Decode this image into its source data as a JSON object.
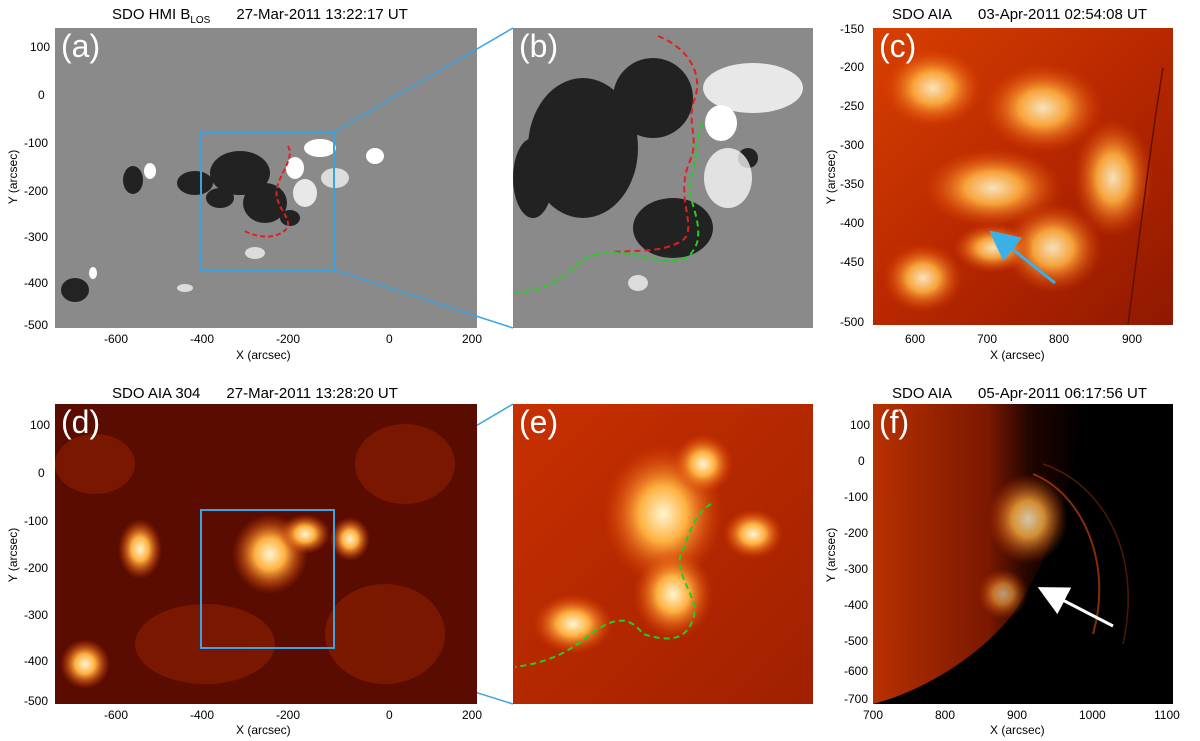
{
  "panels": {
    "a": {
      "label": "(a)",
      "title_left": "SDO HMI B",
      "title_sub": "LOS",
      "title_time": "27-Mar-2011 13:22:17 UT",
      "x_ticks": [
        "-600",
        "-400",
        "-200",
        "0",
        "200"
      ],
      "y_ticks": [
        "100",
        "0",
        "-100",
        "-200",
        "-300",
        "-400",
        "-500"
      ],
      "xlabel": "X (arcsec)",
      "ylabel": "Y (arcsec)"
    },
    "b": {
      "label": "(b)"
    },
    "c": {
      "label": "(c)",
      "title_left": "SDO AIA",
      "title_time": "03-Apr-2011 02:54:08 UT",
      "x_ticks": [
        "600",
        "700",
        "800",
        "900"
      ],
      "y_ticks": [
        "-150",
        "-200",
        "-250",
        "-300",
        "-350",
        "-400",
        "-450",
        "-500"
      ],
      "xlabel": "X (arcsec)",
      "ylabel": "Y (arcsec)"
    },
    "d": {
      "label": "(d)",
      "title_left": "SDO AIA 304",
      "title_time": "27-Mar-2011 13:28:20 UT",
      "x_ticks": [
        "-600",
        "-400",
        "-200",
        "0",
        "200"
      ],
      "y_ticks": [
        "100",
        "0",
        "-100",
        "-200",
        "-300",
        "-400",
        "-500"
      ],
      "xlabel": "X (arcsec)",
      "ylabel": "Y (arcsec)"
    },
    "e": {
      "label": "(e)"
    },
    "f": {
      "label": "(f)",
      "title_left": "SDO AIA",
      "title_time": "05-Apr-2011 06:17:56 UT",
      "x_ticks": [
        "700",
        "800",
        "900",
        "1000",
        "1100"
      ],
      "y_ticks": [
        "100",
        "0",
        "-100",
        "-200",
        "-300",
        "-400",
        "-500",
        "-600",
        "-700"
      ],
      "xlabel": "X (arcsec)",
      "ylabel": "Y (arcsec)"
    }
  },
  "colors": {
    "box": "#3aa3e0",
    "red_dash": "#e02020",
    "green_dash": "#20d020",
    "arrow_c": "#3ab0e8",
    "arrow_f": "#ffffff"
  }
}
